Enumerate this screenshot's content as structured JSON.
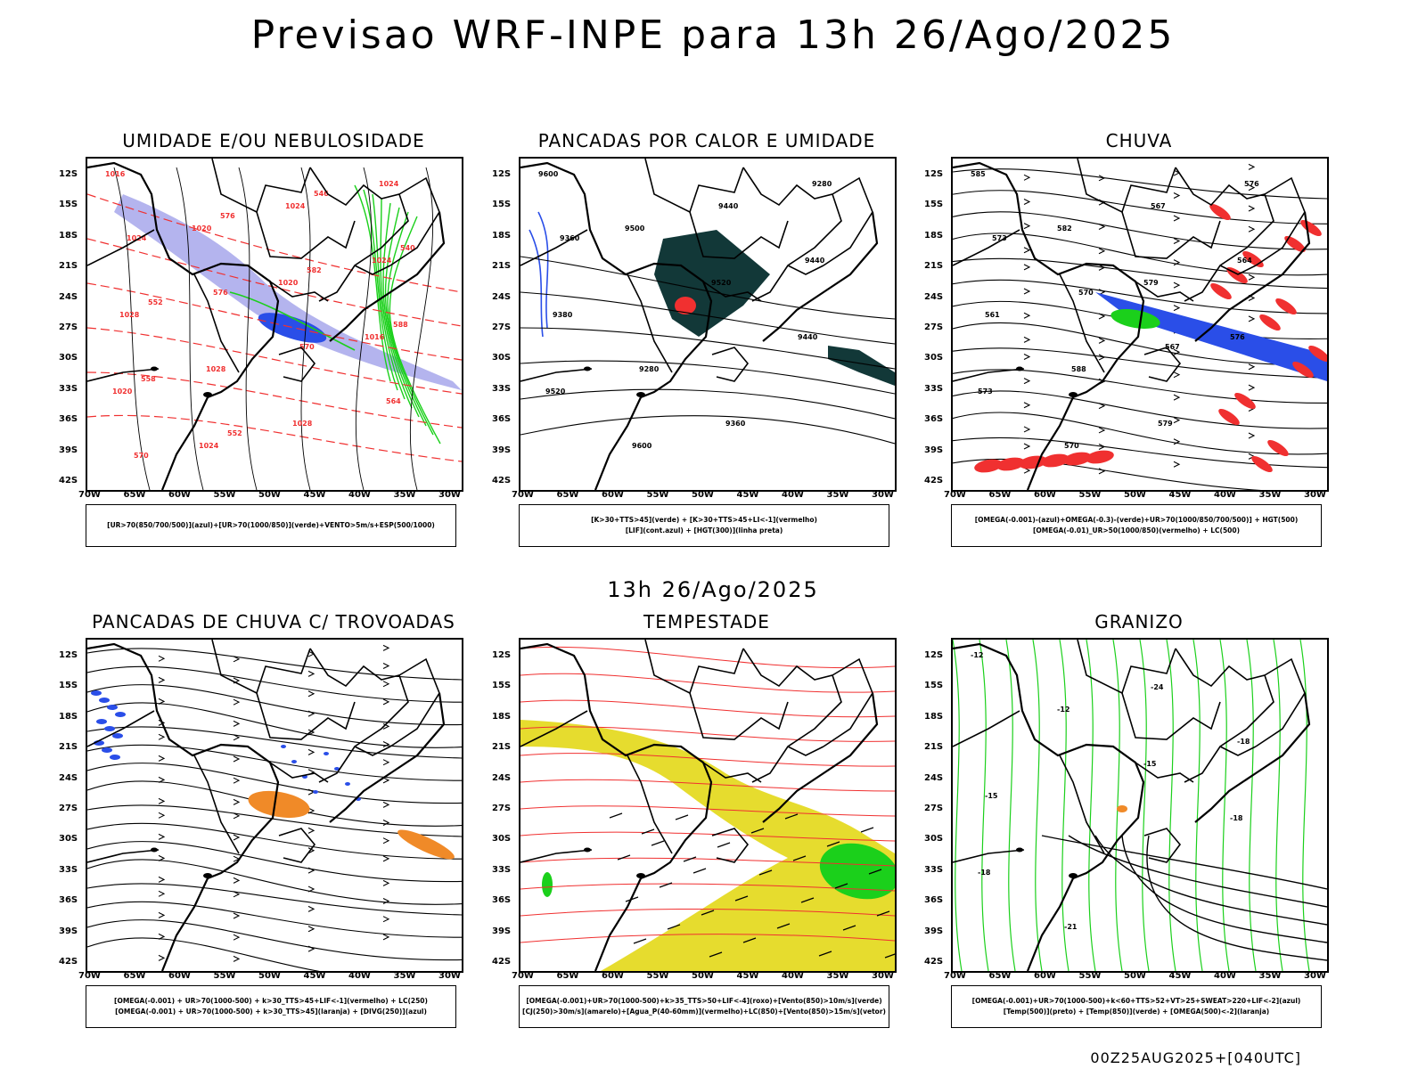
{
  "title": "Previsao WRF-INPE  para 13h 26/Ago/2025",
  "mid_title": "13h 26/Ago/2025",
  "footer": "00Z25AUG2025+[040UTC]",
  "lat_labels": [
    "12S",
    "15S",
    "18S",
    "21S",
    "24S",
    "27S",
    "30S",
    "33S",
    "36S",
    "39S",
    "42S"
  ],
  "lon_labels": [
    "70W",
    "65W",
    "60W",
    "55W",
    "50W",
    "45W",
    "40W",
    "35W",
    "30W"
  ],
  "colors": {
    "blue": "#2a4ee8",
    "light_blue": "#b4b4ee",
    "green": "#1bd01b",
    "red": "#f03030",
    "dark_teal": "#123838",
    "yellow": "#e6dc2e",
    "orange": "#f08a28"
  },
  "panels": [
    {
      "title": "UMIDADE E/OU NEBULOSIDADE",
      "legend": [
        "[UR>70(850/700/500)](azul)+[UR>70(1000/850)](verde)+VENTO>5m/s+ESP(500/1000)"
      ],
      "contour_labels": [
        "1016",
        "1020",
        "1020",
        "1016",
        "1020",
        "1024",
        "1024",
        "1024",
        "1028",
        "1028",
        "1028",
        "1024",
        "1024",
        "576",
        "570",
        "564",
        "570",
        "576",
        "582",
        "588",
        "558",
        "552",
        "546",
        "540",
        "552"
      ]
    },
    {
      "title": "PANCADAS POR CALOR E UMIDADE",
      "legend": [
        "[K>30+TTS>45](verde) + [K>30+TTS>45+LI<-1](vermelho)",
        "[LIF](cont.azul) + [HGT(300)](linha preta)"
      ],
      "contour_labels": [
        "9600",
        "9500",
        "9520",
        "9440",
        "9520",
        "9600",
        "9440",
        "9440",
        "9380",
        "9280",
        "9360",
        "9280",
        "9360"
      ]
    },
    {
      "title": "CHUVA",
      "legend": [
        "[OMEGA(-0.001)-(azul)+OMEGA(-0.3)-(verde)+UR>70(1000/850/700/500)] + HGT(500)",
        "[OMEGA(-0.01)_UR>50(1000/850)(vermelho) + LC(500)"
      ],
      "contour_labels": [
        "585",
        "582",
        "579",
        "576",
        "573",
        "570",
        "567",
        "564",
        "561",
        "588",
        "579",
        "576",
        "573",
        "570",
        "567"
      ]
    },
    {
      "title": "PANCADAS DE CHUVA C/ TROVOADAS",
      "legend": [
        "[OMEGA(-0.001) + UR>70(1000-500) + k>30_TTS>45+LIF<-1](vermelho) + LC(250)",
        "[OMEGA(-0.001) + UR>70(1000-500) + k>30_TTS>45](laranja) + [DIVG(250)](azul)"
      ],
      "contour_labels": []
    },
    {
      "title": "TEMPESTADE",
      "legend": [
        "[OMEGA(-0.001)+UR>70(1000-500)+k>35_TTS>50+LIF<-4](roxo)+[Vento(850)>10m/s](verde)",
        "[CJ(250)>30m/s](amarelo)+[Agua_P(40-60mm)](vermelho)+LC(850)+[Vento(850)>15m/s](vetor)"
      ],
      "contour_labels": []
    },
    {
      "title": "GRANIZO",
      "legend": [
        "[OMEGA(-0.001)+UR>70(1000-500)+k<60+TTS>52+VT>25+SWEAT>220+LIF<-2](azul)",
        "[Temp(500)](preto) + [Temp(850)](verde) + [OMEGA(500)<-2](laranja)"
      ],
      "contour_labels": [
        "-12",
        "-12",
        "-15",
        "-18",
        "-18",
        "-21",
        "-24",
        "-18",
        "-15"
      ]
    }
  ]
}
